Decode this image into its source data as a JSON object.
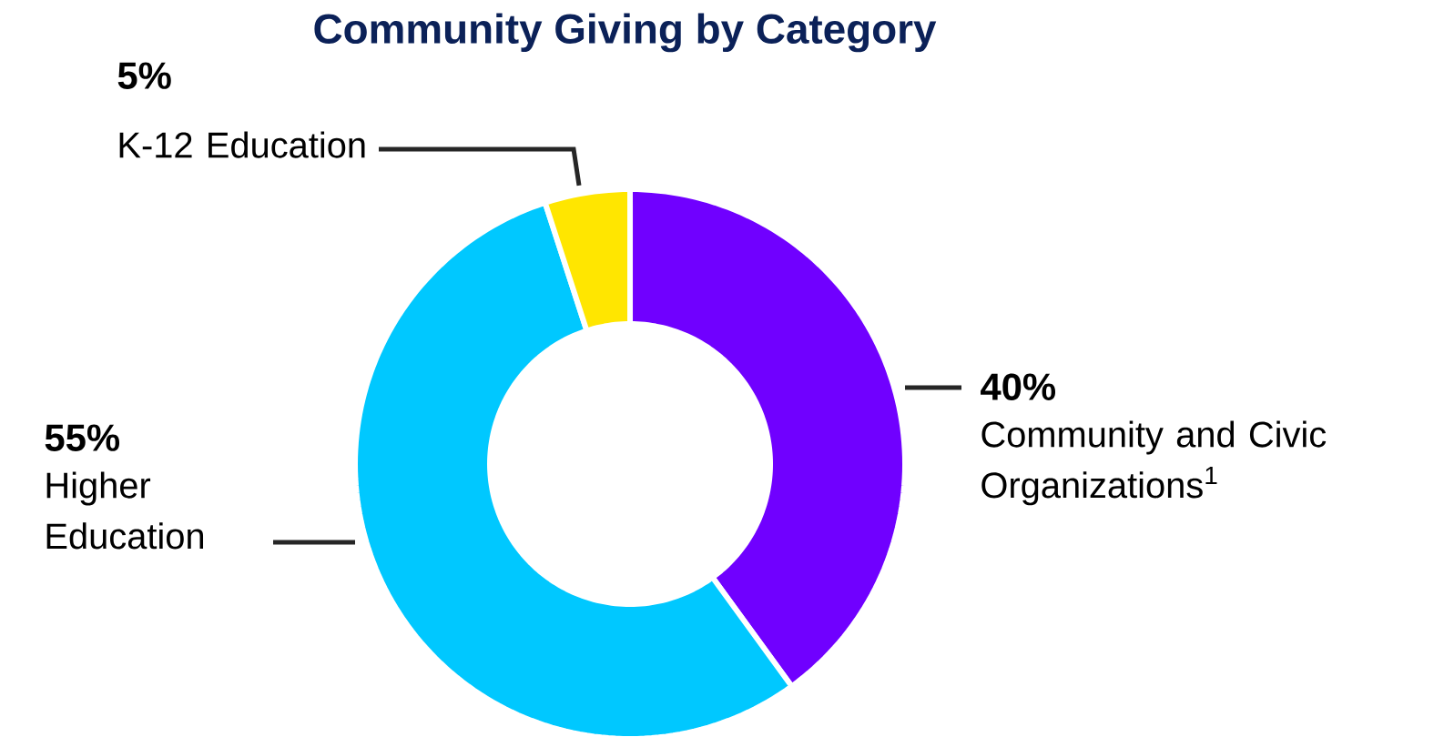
{
  "chart_data": {
    "type": "donut",
    "title": "Community Giving by Category",
    "categories": [
      "Community and Civic Organizations$^{1}$",
      "Higher Education",
      "K-12 Education"
    ],
    "values": [
      40,
      55,
      5
    ],
    "colors": [
      "#7000ff",
      "#00c8ff",
      "#ffe600"
    ],
    "value_labels": [
      "40%",
      "55%",
      "5%"
    ]
  }
}
